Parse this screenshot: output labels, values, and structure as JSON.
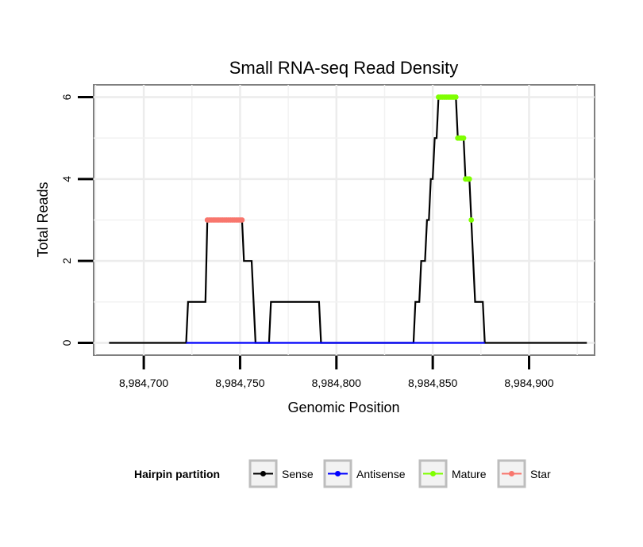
{
  "chart_data": {
    "type": "line",
    "title": "Small RNA-seq Read Density",
    "xlabel": "Genomic Position",
    "ylabel": "Total Reads",
    "xlim": [
      8984674,
      8984934
    ],
    "ylim": [
      -0.3,
      6.3
    ],
    "xticks": [
      8984700,
      8984750,
      8984800,
      8984850,
      8984900
    ],
    "xtick_labels": [
      "8,984,700",
      "8,984,750",
      "8,984,800",
      "8,984,850",
      "8,984,900"
    ],
    "yticks": [
      0,
      2,
      4,
      6
    ],
    "ytick_labels": [
      "0",
      "2",
      "4",
      "6"
    ],
    "grid": true,
    "legend": {
      "title": "Hairpin partition",
      "placement": "bottom",
      "entries": [
        {
          "name": "Sense",
          "color": "#000000"
        },
        {
          "name": "Antisense",
          "color": "#0000ff"
        },
        {
          "name": "Mature",
          "color": "#7fff00"
        },
        {
          "name": "Star",
          "color": "#f8766d"
        }
      ]
    },
    "series": [
      {
        "name": "Sense",
        "color": "#000000",
        "style": "step-line",
        "points": [
          [
            8984682,
            0
          ],
          [
            8984722,
            0
          ],
          [
            8984723,
            1
          ],
          [
            8984732,
            1
          ],
          [
            8984733,
            3
          ],
          [
            8984751,
            3
          ],
          [
            8984752,
            2
          ],
          [
            8984756,
            2
          ],
          [
            8984758,
            0
          ],
          [
            8984765,
            0
          ],
          [
            8984766,
            1
          ],
          [
            8984791,
            1
          ],
          [
            8984792,
            0
          ],
          [
            8984840,
            0
          ],
          [
            8984841,
            1
          ],
          [
            8984843,
            1
          ],
          [
            8984844,
            2
          ],
          [
            8984846,
            2
          ],
          [
            8984847,
            3
          ],
          [
            8984848,
            3
          ],
          [
            8984849,
            4
          ],
          [
            8984850,
            4
          ],
          [
            8984851,
            5
          ],
          [
            8984852,
            5
          ],
          [
            8984853,
            6
          ],
          [
            8984862,
            6
          ],
          [
            8984863,
            5
          ],
          [
            8984866,
            5
          ],
          [
            8984867,
            4
          ],
          [
            8984869,
            4
          ],
          [
            8984870,
            3
          ],
          [
            8984872,
            1
          ],
          [
            8984876,
            1
          ],
          [
            8984877,
            0
          ],
          [
            8984930,
            0
          ]
        ]
      },
      {
        "name": "Antisense",
        "color": "#0000ff",
        "style": "line",
        "points": [
          [
            8984722,
            0
          ],
          [
            8984758,
            0
          ],
          [
            8984791,
            0
          ],
          [
            8984877,
            0
          ]
        ]
      },
      {
        "name": "Mature",
        "color": "#7fff00",
        "style": "points",
        "points": [
          [
            8984853,
            6
          ],
          [
            8984854,
            6
          ],
          [
            8984855,
            6
          ],
          [
            8984856,
            6
          ],
          [
            8984857,
            6
          ],
          [
            8984858,
            6
          ],
          [
            8984859,
            6
          ],
          [
            8984860,
            6
          ],
          [
            8984861,
            6
          ],
          [
            8984862,
            6
          ],
          [
            8984863,
            5
          ],
          [
            8984864,
            5
          ],
          [
            8984865,
            5
          ],
          [
            8984866,
            5
          ],
          [
            8984867,
            4
          ],
          [
            8984868,
            4
          ],
          [
            8984869,
            4
          ],
          [
            8984870,
            3
          ]
        ]
      },
      {
        "name": "Star",
        "color": "#f8766d",
        "style": "points",
        "points": [
          [
            8984733,
            3
          ],
          [
            8984734,
            3
          ],
          [
            8984735,
            3
          ],
          [
            8984736,
            3
          ],
          [
            8984737,
            3
          ],
          [
            8984738,
            3
          ],
          [
            8984739,
            3
          ],
          [
            8984740,
            3
          ],
          [
            8984741,
            3
          ],
          [
            8984742,
            3
          ],
          [
            8984743,
            3
          ],
          [
            8984744,
            3
          ],
          [
            8984745,
            3
          ],
          [
            8984746,
            3
          ],
          [
            8984747,
            3
          ],
          [
            8984748,
            3
          ],
          [
            8984749,
            3
          ],
          [
            8984750,
            3
          ],
          [
            8984751,
            3
          ]
        ]
      }
    ]
  }
}
